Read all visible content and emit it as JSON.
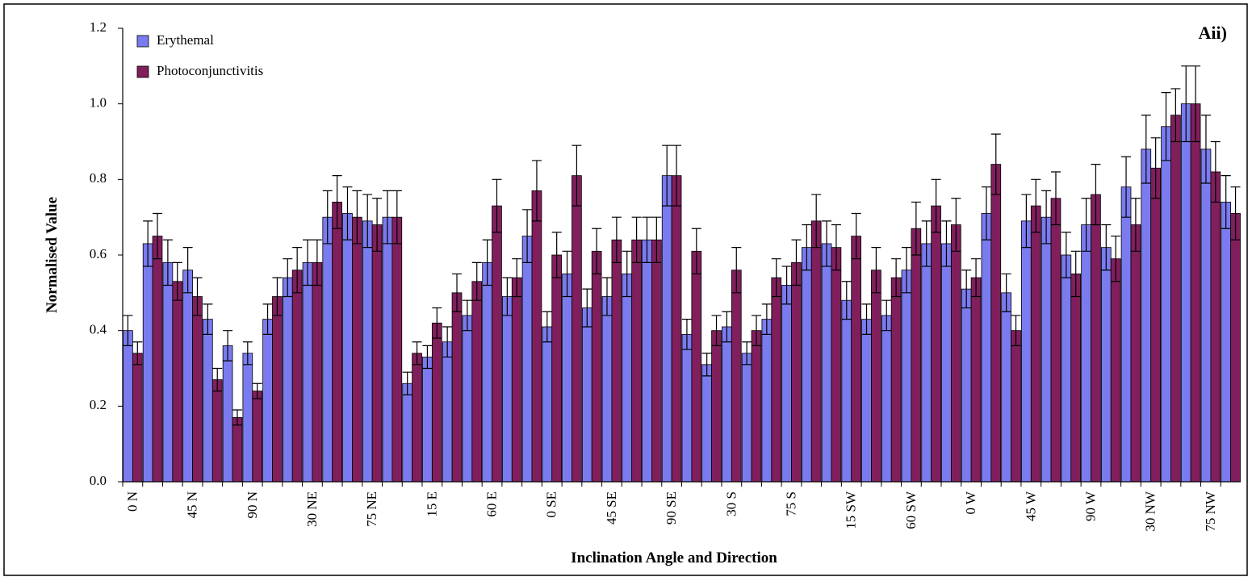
{
  "chart_data": {
    "type": "bar",
    "annotation": "Aii)",
    "xlabel": "Inclination Angle and Direction",
    "ylabel": "Normalised Value",
    "categories": [
      "0 N",
      null,
      null,
      "45 N",
      null,
      null,
      "90 N",
      null,
      null,
      "30 NE",
      null,
      null,
      "75 NE",
      null,
      null,
      "15 E",
      null,
      null,
      "60 E",
      null,
      null,
      "0 SE",
      null,
      null,
      "45 SE",
      null,
      null,
      "90 SE",
      null,
      null,
      "30 S",
      null,
      null,
      "75 S",
      null,
      null,
      "15 SW",
      null,
      null,
      "60 SW",
      null,
      null,
      "0 W",
      null,
      null,
      "45 W",
      null,
      null,
      "90 W",
      null,
      null,
      "30 NW",
      null,
      null,
      "75 NW",
      null
    ],
    "series": [
      {
        "name": "Erythemal",
        "color": "#7b7bf0",
        "values": [
          0.4,
          0.63,
          0.58,
          0.56,
          0.43,
          0.36,
          0.34,
          0.43,
          0.54,
          0.58,
          0.7,
          0.71,
          0.69,
          0.7,
          0.26,
          0.33,
          0.37,
          0.44,
          0.58,
          0.49,
          0.65,
          0.41,
          0.55,
          0.46,
          0.49,
          0.55,
          0.64,
          0.81,
          0.39,
          0.31,
          0.41,
          0.34,
          0.43,
          0.52,
          0.62,
          0.63,
          0.48,
          0.43,
          0.44,
          0.56,
          0.63,
          0.63,
          0.51,
          0.71,
          0.5,
          0.69,
          0.7,
          0.6,
          0.68,
          0.62,
          0.78,
          0.88,
          0.94,
          1.0,
          0.88,
          0.74
        ],
        "errors": [
          0.04,
          0.06,
          0.06,
          0.06,
          0.04,
          0.04,
          0.03,
          0.04,
          0.05,
          0.06,
          0.07,
          0.07,
          0.07,
          0.07,
          0.03,
          0.03,
          0.04,
          0.04,
          0.06,
          0.05,
          0.07,
          0.04,
          0.06,
          0.05,
          0.05,
          0.06,
          0.06,
          0.08,
          0.04,
          0.03,
          0.04,
          0.03,
          0.04,
          0.05,
          0.06,
          0.06,
          0.05,
          0.04,
          0.04,
          0.06,
          0.06,
          0.06,
          0.05,
          0.07,
          0.05,
          0.07,
          0.07,
          0.06,
          0.07,
          0.06,
          0.08,
          0.09,
          0.09,
          0.1,
          0.09,
          0.07
        ]
      },
      {
        "name": "Photoconjunctivitis",
        "color": "#801f5c",
        "values": [
          0.34,
          0.65,
          0.53,
          0.49,
          0.27,
          0.17,
          0.24,
          0.49,
          0.56,
          0.58,
          0.74,
          0.7,
          0.68,
          0.7,
          0.34,
          0.42,
          0.5,
          0.53,
          0.73,
          0.54,
          0.77,
          0.6,
          0.81,
          0.61,
          0.64,
          0.64,
          0.64,
          0.81,
          0.61,
          0.4,
          0.56,
          0.4,
          0.54,
          0.58,
          0.69,
          0.62,
          0.65,
          0.56,
          0.54,
          0.67,
          0.73,
          0.68,
          0.54,
          0.84,
          0.4,
          0.73,
          0.75,
          0.55,
          0.76,
          0.59,
          0.68,
          0.83,
          0.97,
          1.0,
          0.82,
          0.71
        ],
        "errors": [
          0.03,
          0.06,
          0.05,
          0.05,
          0.03,
          0.02,
          0.02,
          0.05,
          0.06,
          0.06,
          0.07,
          0.07,
          0.07,
          0.07,
          0.03,
          0.04,
          0.05,
          0.05,
          0.07,
          0.05,
          0.08,
          0.06,
          0.08,
          0.06,
          0.06,
          0.06,
          0.06,
          0.08,
          0.06,
          0.04,
          0.06,
          0.04,
          0.05,
          0.06,
          0.07,
          0.06,
          0.06,
          0.06,
          0.05,
          0.07,
          0.07,
          0.07,
          0.05,
          0.08,
          0.04,
          0.07,
          0.07,
          0.06,
          0.08,
          0.06,
          0.07,
          0.08,
          0.07,
          0.1,
          0.08,
          0.07
        ]
      }
    ],
    "ylim": [
      0,
      1.2
    ],
    "yticks": [
      {
        "value": 0,
        "label": "0.0"
      },
      {
        "value": 0.2,
        "label": "0.2"
      },
      {
        "value": 0.4,
        "label": "0.4"
      },
      {
        "value": 0.6,
        "label": "0.6"
      },
      {
        "value": 0.8,
        "label": "0.8"
      },
      {
        "value": 1.0,
        "label": "1.0"
      },
      {
        "value": 1.2,
        "label": "1.2"
      }
    ],
    "legend": "upper left"
  }
}
